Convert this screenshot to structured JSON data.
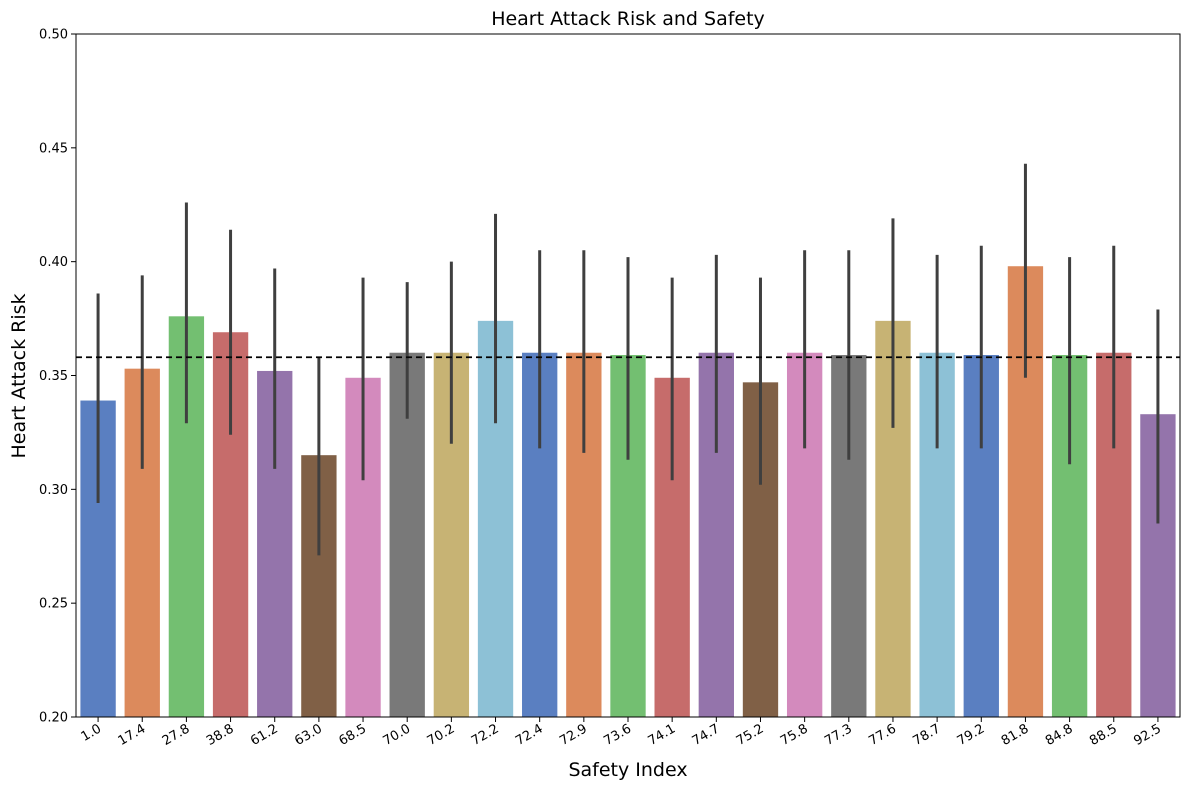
{
  "chart_data": {
    "type": "bar",
    "title": "Heart Attack Risk and Safety",
    "xlabel": "Safety Index",
    "ylabel": "Heart Attack Risk",
    "ylim": [
      0.2,
      0.5
    ],
    "yticks": [
      "0.20",
      "0.25",
      "0.30",
      "0.35",
      "0.40",
      "0.45",
      "0.50"
    ],
    "categories": [
      "1.0",
      "17.4",
      "27.8",
      "38.8",
      "61.2",
      "63.0",
      "68.5",
      "70.0",
      "70.2",
      "72.2",
      "72.4",
      "72.9",
      "73.6",
      "74.1",
      "74.7",
      "75.2",
      "75.8",
      "77.3",
      "77.6",
      "78.7",
      "79.2",
      "81.8",
      "84.8",
      "88.5",
      "92.5"
    ],
    "values": [
      0.339,
      0.353,
      0.376,
      0.369,
      0.352,
      0.315,
      0.349,
      0.36,
      0.36,
      0.374,
      0.36,
      0.36,
      0.359,
      0.349,
      0.36,
      0.347,
      0.36,
      0.359,
      0.374,
      0.36,
      0.359,
      0.398,
      0.359,
      0.36,
      0.333
    ],
    "ci_low": [
      0.294,
      0.309,
      0.329,
      0.324,
      0.309,
      0.271,
      0.304,
      0.331,
      0.32,
      0.329,
      0.318,
      0.316,
      0.313,
      0.304,
      0.316,
      0.302,
      0.318,
      0.313,
      0.327,
      0.318,
      0.318,
      0.349,
      0.311,
      0.318,
      0.285
    ],
    "ci_high": [
      0.386,
      0.394,
      0.426,
      0.414,
      0.397,
      0.358,
      0.393,
      0.391,
      0.4,
      0.421,
      0.405,
      0.405,
      0.402,
      0.393,
      0.403,
      0.393,
      0.405,
      0.405,
      0.419,
      0.403,
      0.407,
      0.443,
      0.402,
      0.407,
      0.379
    ],
    "reference_line": 0.358,
    "reference_line_color": "#000000",
    "error_bar_color": "#3f3f3f",
    "palette": [
      "#5a7fc1",
      "#dc8a5c",
      "#73bf71",
      "#c66c6b",
      "#9474ab",
      "#806046",
      "#d38abd",
      "#797979",
      "#c7b374",
      "#8dc1d6"
    ],
    "grid": false,
    "legend": "none"
  }
}
